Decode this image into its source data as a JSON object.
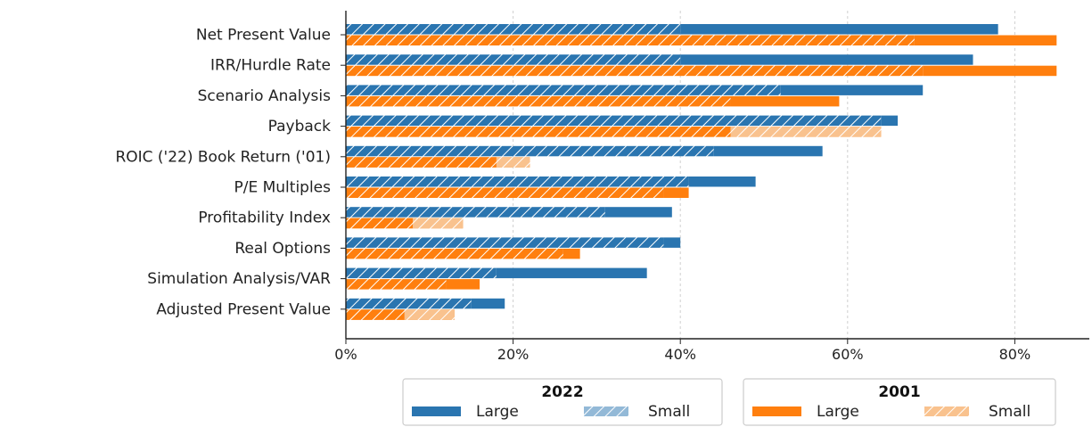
{
  "chart_data": {
    "type": "bar",
    "orientation": "horizontal",
    "stacked": true,
    "categories": [
      "Net Present Value",
      "IRR/Hurdle Rate",
      "Scenario Analysis",
      "Payback",
      "ROIC ('22) Book Return ('01)",
      "P/E Multiples",
      "Profitability Index",
      "Real Options",
      "Simulation Analysis/VAR",
      "Adjusted Present Value"
    ],
    "series": [
      {
        "group": "2022",
        "name": "Small",
        "values": [
          40,
          40,
          52,
          64,
          44,
          41,
          31,
          38,
          18,
          15
        ]
      },
      {
        "group": "2022",
        "name": "Large",
        "values": [
          78,
          75,
          69,
          66,
          57,
          49,
          39,
          40,
          36,
          19
        ]
      },
      {
        "group": "2001",
        "name": "Small",
        "values": [
          68,
          69,
          46,
          64,
          22,
          38,
          14,
          26,
          12,
          13
        ]
      },
      {
        "group": "2001",
        "name": "Large",
        "values": [
          85,
          85,
          59,
          46,
          18,
          41,
          8,
          28,
          16,
          7
        ]
      }
    ],
    "xlim": [
      0,
      89
    ],
    "xticks": [
      "0%",
      "20%",
      "40%",
      "60%",
      "80%"
    ],
    "grid": "x, dashed",
    "legend": {
      "placement": "bottom",
      "groups": [
        {
          "title": "2022",
          "entries": [
            "Large",
            "Small"
          ]
        },
        {
          "title": "2001",
          "entries": [
            "Large",
            "Small"
          ]
        }
      ]
    },
    "colors": {
      "2022_large": "#2a75b0",
      "2022_small": "#93b9d7",
      "2001_large": "#ff7f0e",
      "2001_small": "#f9c28e"
    }
  }
}
